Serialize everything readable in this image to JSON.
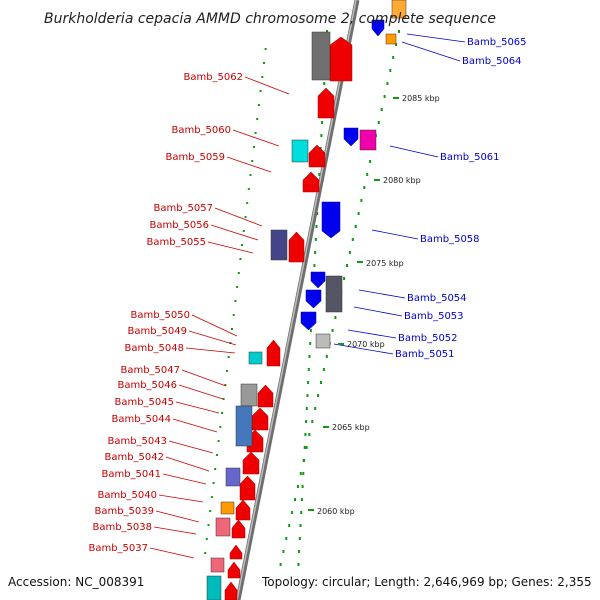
{
  "title": "Burkholderia cepacia AMMD chromosome 2, complete sequence",
  "footer": {
    "accession": "Accession: NC_008391",
    "topology": "Topology: circular; Length: 2,646,969 bp; Genes: 2,355"
  },
  "colors": {
    "left_label": "#cc0000",
    "right_label": "#0000cc",
    "axis": "#8c8c8c",
    "tick_marks": "#119911"
  },
  "scale_ticks": [
    "2085 kbp",
    "2080 kbp",
    "2075 kbp",
    "2070 kbp",
    "2065 kbp",
    "2060 kbp"
  ],
  "left_genes": [
    "Bamb_5062",
    "Bamb_5060",
    "Bamb_5059",
    "Bamb_5057",
    "Bamb_5056",
    "Bamb_5055",
    "Bamb_5050",
    "Bamb_5049",
    "Bamb_5048",
    "Bamb_5047",
    "Bamb_5046",
    "Bamb_5045",
    "Bamb_5044",
    "Bamb_5043",
    "Bamb_5042",
    "Bamb_5041",
    "Bamb_5040",
    "Bamb_5039",
    "Bamb_5038",
    "Bamb_5037"
  ],
  "right_genes": [
    "Bamb_5065",
    "Bamb_5064",
    "Bamb_5061",
    "Bamb_5058",
    "Bamb_5054",
    "Bamb_5053",
    "Bamb_5052",
    "Bamb_5051"
  ]
}
